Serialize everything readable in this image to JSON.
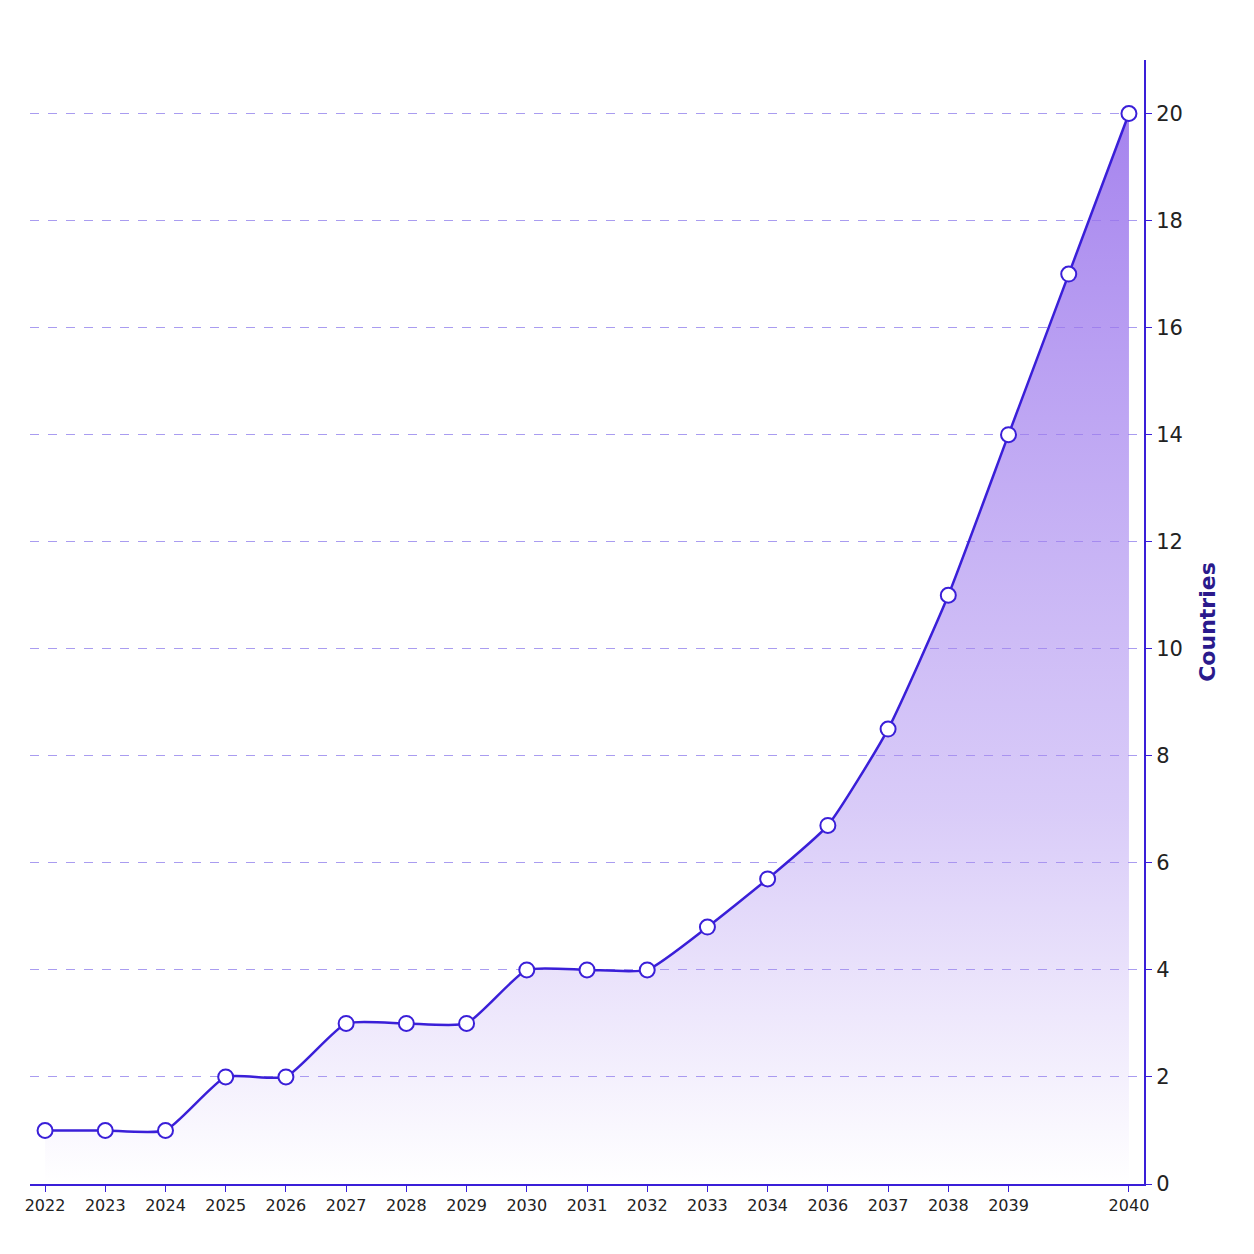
{
  "chart_data": {
    "type": "area",
    "categories": [
      "2022",
      "2023",
      "2024",
      "2025",
      "2026",
      "2027",
      "2028",
      "2029",
      "2030",
      "2031",
      "2032",
      "2033",
      "2034",
      "2036",
      "2037",
      "2038",
      "2039",
      null,
      "2040"
    ],
    "values": [
      1,
      1,
      1,
      2,
      2,
      3,
      3,
      3,
      4,
      4,
      4,
      4.8,
      5.7,
      6.7,
      8.5,
      11,
      14,
      17,
      20
    ],
    "color": "#3a1fd8",
    "marker": "circle",
    "y_label": "Countries",
    "ylim": [
      0,
      21
    ],
    "yticks": [
      0,
      2,
      4,
      6,
      8,
      10,
      12,
      14,
      16,
      18,
      20
    ],
    "grid": true
  }
}
